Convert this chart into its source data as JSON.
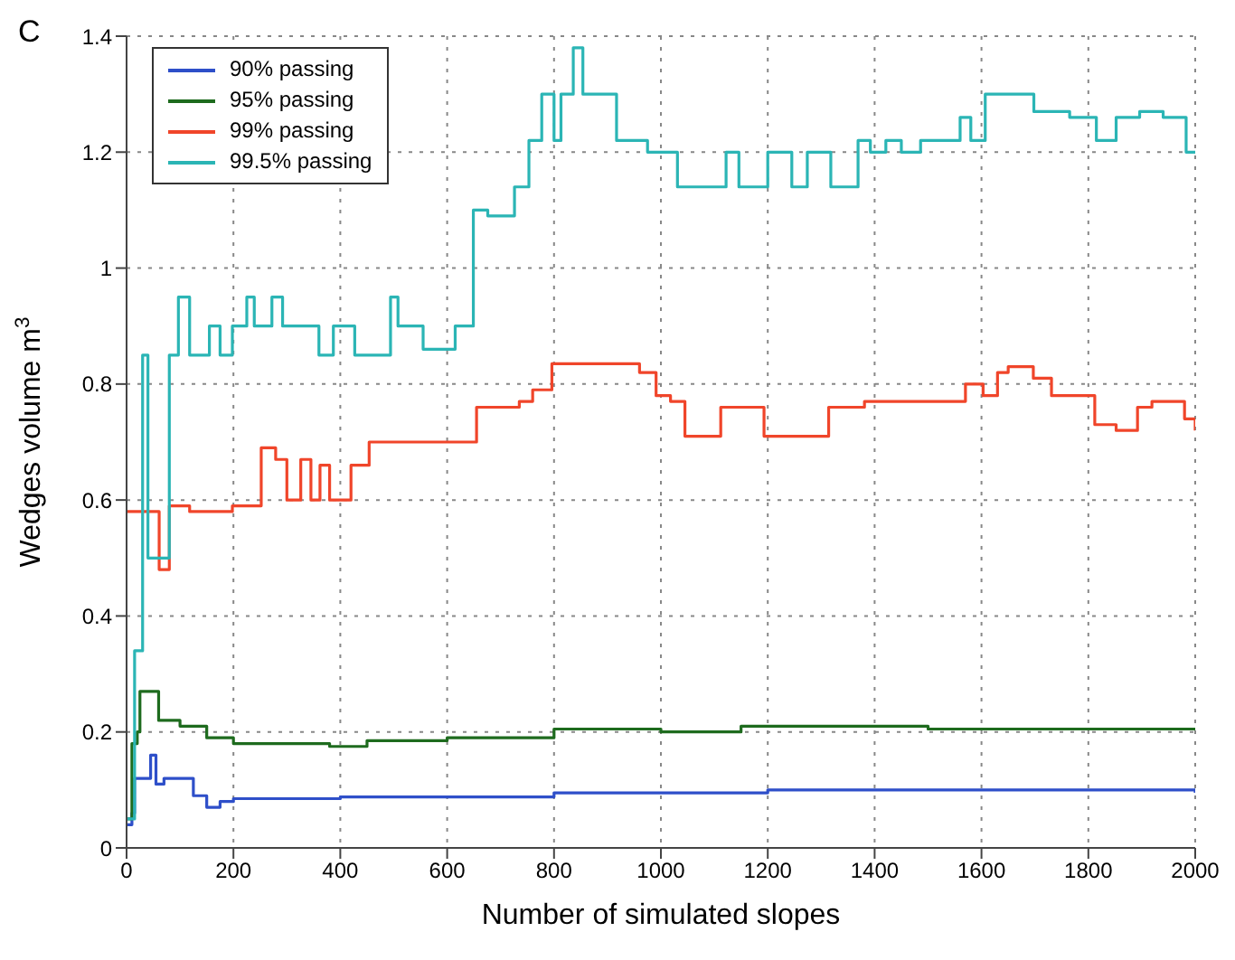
{
  "chart_data": {
    "type": "step",
    "annotations": [
      "C"
    ],
    "xlabel": "Number of simulated slopes",
    "ylabel": "Wedges volume m$^{3}$",
    "xlim": [
      0,
      2000
    ],
    "xticks": [
      0,
      200,
      400,
      600,
      800,
      1000,
      1200,
      1400,
      1600,
      1800,
      2000
    ],
    "ylim": [
      0,
      1.4
    ],
    "yticks": [
      0,
      0.2,
      0.4,
      0.6,
      0.8,
      1,
      1.2,
      1.4
    ],
    "grid": true,
    "legend": "top left",
    "line_style": "solid",
    "marker": "none",
    "series": [
      {
        "name": "90% passing",
        "color": "#2e4fc9",
        "x": [
          0,
          10,
          15,
          40,
          45,
          55,
          70,
          100,
          125,
          150,
          175,
          200,
          400,
          800,
          1200,
          2000
        ],
        "values": [
          0.04,
          0.06,
          0.12,
          0.12,
          0.16,
          0.11,
          0.12,
          0.12,
          0.09,
          0.07,
          0.08,
          0.085,
          0.088,
          0.095,
          0.1,
          0.095
        ]
      },
      {
        "name": "95% passing",
        "color": "#1e6b1e",
        "x": [
          0,
          10,
          20,
          25,
          50,
          60,
          100,
          150,
          200,
          300,
          380,
          450,
          600,
          800,
          1000,
          1150,
          1500,
          2000
        ],
        "values": [
          0.05,
          0.18,
          0.2,
          0.27,
          0.27,
          0.22,
          0.21,
          0.19,
          0.18,
          0.18,
          0.175,
          0.185,
          0.19,
          0.205,
          0.2,
          0.21,
          0.205,
          0.205
        ]
      },
      {
        "name": "99% passing",
        "color": "#f0452a",
        "x": [
          0,
          30,
          61,
          80,
          118,
          198,
          252,
          279,
          300,
          326,
          345,
          362,
          380,
          420,
          454,
          655,
          735,
          760,
          796,
          960,
          991,
          1018,
          1045,
          1072,
          1112,
          1193,
          1314,
          1381,
          1570,
          1603,
          1630,
          1650,
          1697,
          1731,
          1812,
          1852,
          1892,
          1919,
          1980,
          2000
        ],
        "values": [
          0.58,
          0.58,
          0.48,
          0.59,
          0.58,
          0.59,
          0.69,
          0.67,
          0.6,
          0.67,
          0.6,
          0.66,
          0.6,
          0.66,
          0.7,
          0.76,
          0.77,
          0.79,
          0.835,
          0.82,
          0.78,
          0.77,
          0.71,
          0.71,
          0.76,
          0.71,
          0.76,
          0.77,
          0.8,
          0.78,
          0.82,
          0.83,
          0.81,
          0.78,
          0.73,
          0.72,
          0.76,
          0.77,
          0.74,
          0.72
        ]
      },
      {
        "name": "99.5% passing",
        "color": "#2bb5b5",
        "x": [
          0,
          15,
          30,
          40,
          80,
          97,
          118,
          155,
          175,
          198,
          225,
          239,
          272,
          292,
          360,
          387,
          427,
          494,
          508,
          555,
          615,
          649,
          676,
          726,
          753,
          777,
          800,
          813,
          836,
          854,
          917,
          975,
          1031,
          1122,
          1146,
          1200,
          1245,
          1274,
          1318,
          1369,
          1392,
          1421,
          1450,
          1486,
          1560,
          1580,
          1607,
          1698,
          1765,
          1815,
          1852,
          1896,
          1940,
          1983,
          2000
        ],
        "values": [
          0.05,
          0.34,
          0.85,
          0.5,
          0.85,
          0.95,
          0.85,
          0.9,
          0.85,
          0.9,
          0.95,
          0.9,
          0.95,
          0.9,
          0.85,
          0.9,
          0.85,
          0.95,
          0.9,
          0.86,
          0.9,
          1.1,
          1.09,
          1.14,
          1.22,
          1.3,
          1.22,
          1.3,
          1.38,
          1.3,
          1.22,
          1.2,
          1.14,
          1.2,
          1.14,
          1.2,
          1.14,
          1.2,
          1.14,
          1.22,
          1.2,
          1.22,
          1.2,
          1.22,
          1.26,
          1.22,
          1.3,
          1.27,
          1.26,
          1.22,
          1.26,
          1.27,
          1.26,
          1.2,
          1.2
        ]
      }
    ]
  }
}
